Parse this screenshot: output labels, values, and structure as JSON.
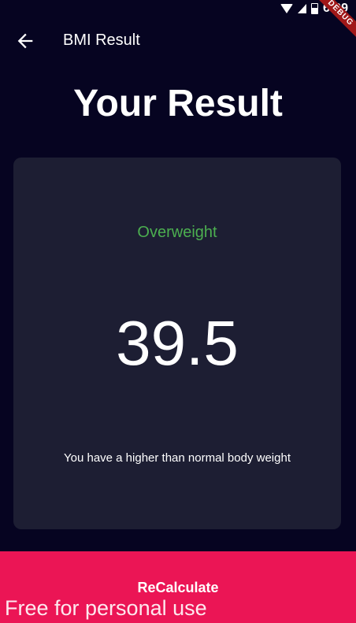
{
  "status_bar": {
    "time": "6:09",
    "debug_label": "DEBUG"
  },
  "app_bar": {
    "back_icon": "arrow-left-icon",
    "title": "BMI Result"
  },
  "page": {
    "heading": "Your Result"
  },
  "result": {
    "status": "Overweight",
    "status_color": "#4caf50",
    "bmi": "39.5",
    "message": "You have a higher than normal body weight"
  },
  "button": {
    "label": "ReCalculate",
    "color": "#eb1555"
  },
  "watermark": "Free for personal use"
}
